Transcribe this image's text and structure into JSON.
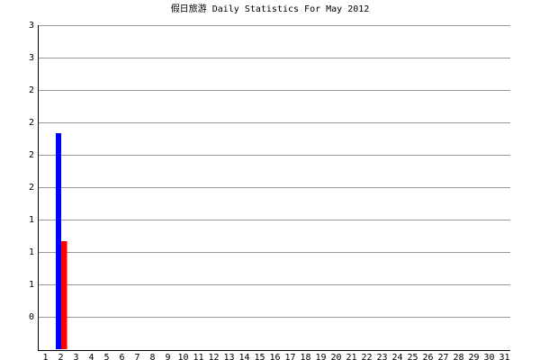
{
  "chart_data": {
    "type": "bar",
    "title": "假日旅游 Daily Statistics For May 2012",
    "categories": [
      "1",
      "2",
      "3",
      "4",
      "5",
      "6",
      "7",
      "8",
      "9",
      "10",
      "11",
      "12",
      "13",
      "14",
      "15",
      "16",
      "17",
      "18",
      "19",
      "20",
      "21",
      "22",
      "23",
      "24",
      "25",
      "26",
      "27",
      "28",
      "29",
      "30",
      "31"
    ],
    "series": [
      {
        "color": "#0000ff",
        "values": [
          0,
          2,
          0,
          0,
          0,
          0,
          0,
          0,
          0,
          0,
          0,
          0,
          0,
          0,
          0,
          0,
          0,
          0,
          0,
          0,
          0,
          0,
          0,
          0,
          0,
          0,
          0,
          0,
          0,
          0,
          0
        ]
      },
      {
        "color": "#ff0000",
        "values": [
          0,
          1,
          0,
          0,
          0,
          0,
          0,
          0,
          0,
          0,
          0,
          0,
          0,
          0,
          0,
          0,
          0,
          0,
          0,
          0,
          0,
          0,
          0,
          0,
          0,
          0,
          0,
          0,
          0,
          0,
          0
        ]
      }
    ],
    "ylim": [
      0,
      3
    ],
    "yticks": [
      {
        "value": 0.3,
        "label": "0"
      },
      {
        "value": 0.6,
        "label": "1"
      },
      {
        "value": 0.9,
        "label": "1"
      },
      {
        "value": 1.2,
        "label": "1"
      },
      {
        "value": 1.5,
        "label": "2"
      },
      {
        "value": 1.8,
        "label": "2"
      },
      {
        "value": 2.1,
        "label": "2"
      },
      {
        "value": 2.4,
        "label": "2"
      },
      {
        "value": 2.7,
        "label": "3"
      },
      {
        "value": 3.0,
        "label": "3"
      }
    ],
    "grid": true
  }
}
